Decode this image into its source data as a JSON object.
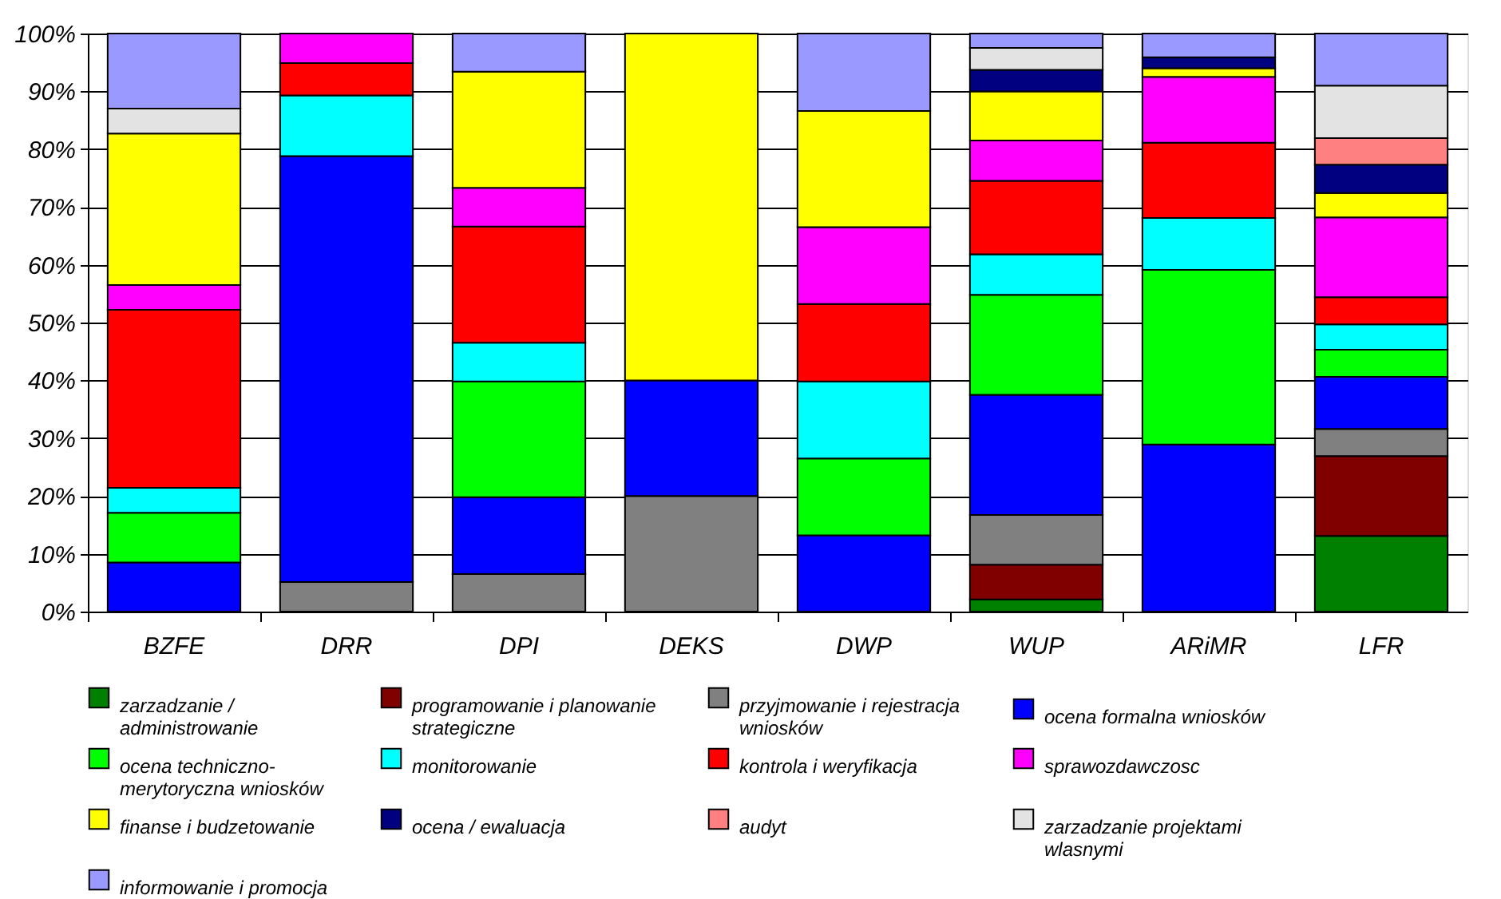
{
  "chart_data": {
    "type": "bar",
    "stacked": true,
    "categories": [
      "BZFE",
      "DRR",
      "DPI",
      "DEKS",
      "DWP",
      "WUP",
      "ARiMR",
      "LFR"
    ],
    "ylim": [
      0,
      100
    ],
    "yticks": [
      {
        "value": 0,
        "label": "0%"
      },
      {
        "value": 10,
        "label": "10%"
      },
      {
        "value": 20,
        "label": "20%"
      },
      {
        "value": 30,
        "label": "30%"
      },
      {
        "value": 40,
        "label": "40%"
      },
      {
        "value": 50,
        "label": "50%"
      },
      {
        "value": 60,
        "label": "60%"
      },
      {
        "value": 70,
        "label": "70%"
      },
      {
        "value": 80,
        "label": "80%"
      },
      {
        "value": 90,
        "label": "90%"
      },
      {
        "value": 100,
        "label": "100%"
      }
    ],
    "grid": "y",
    "legend": "bottom",
    "series": [
      {
        "name": "zarzadzanie / administrowanie",
        "color": "#008000",
        "values": [
          null,
          null,
          null,
          null,
          null,
          2.1,
          null,
          13.1
        ]
      },
      {
        "name": "programowanie i planowanie strategiczne",
        "color": "#800000",
        "values": [
          null,
          null,
          null,
          null,
          null,
          6.0,
          null,
          13.8
        ]
      },
      {
        "name": "przyjmowanie i rejestracja wniosków",
        "color": "#808080",
        "values": [
          null,
          5.1,
          6.5,
          20,
          null,
          8.6,
          null,
          4.7
        ]
      },
      {
        "name": "ocena formalna wniosków",
        "color": "#0000ff",
        "values": [
          8.5,
          73.7,
          13.3,
          20,
          13.2,
          20.8,
          28.9,
          9.0
        ]
      },
      {
        "name": "ocena techniczno-merytoryczna wniosków",
        "color": "#00ff00",
        "values": [
          8.6,
          null,
          20.0,
          null,
          13.3,
          17.3,
          30.2,
          4.7
        ]
      },
      {
        "name": "monitorowanie",
        "color": "#00ffff",
        "values": [
          4.3,
          10.5,
          6.7,
          null,
          13.3,
          7.0,
          9.0,
          4.4
        ]
      },
      {
        "name": "kontrola i weryfikacja",
        "color": "#ff0000",
        "values": [
          30.8,
          5.6,
          20.1,
          null,
          13.4,
          12.7,
          13.0,
          4.7
        ]
      },
      {
        "name": "sprawozdawczosc",
        "color": "#ff00ff",
        "values": [
          4.3,
          5.1,
          6.7,
          null,
          13.3,
          7.0,
          11.4,
          13.8
        ]
      },
      {
        "name": "finanse i budzetowanie",
        "color": "#ffff00",
        "values": [
          26.2,
          null,
          20.1,
          60,
          20.1,
          8.5,
          1.5,
          4.2
        ]
      },
      {
        "name": "ocena / ewaluacja",
        "color": "#000080",
        "values": [
          null,
          null,
          null,
          null,
          null,
          3.7,
          1.9,
          4.9
        ]
      },
      {
        "name": "audyt",
        "color": "#ff8080",
        "values": [
          null,
          null,
          null,
          null,
          null,
          null,
          null,
          4.6
        ]
      },
      {
        "name": "zarzadzanie projektami wlasnymi",
        "color": "#e3e3e3",
        "values": [
          4.3,
          null,
          null,
          null,
          null,
          3.8,
          null,
          9.1
        ]
      },
      {
        "name": "informowanie i promocja",
        "color": "#9999ff",
        "values": [
          13.0,
          null,
          6.6,
          null,
          13.4,
          2.5,
          4.1,
          9.0
        ]
      }
    ]
  }
}
